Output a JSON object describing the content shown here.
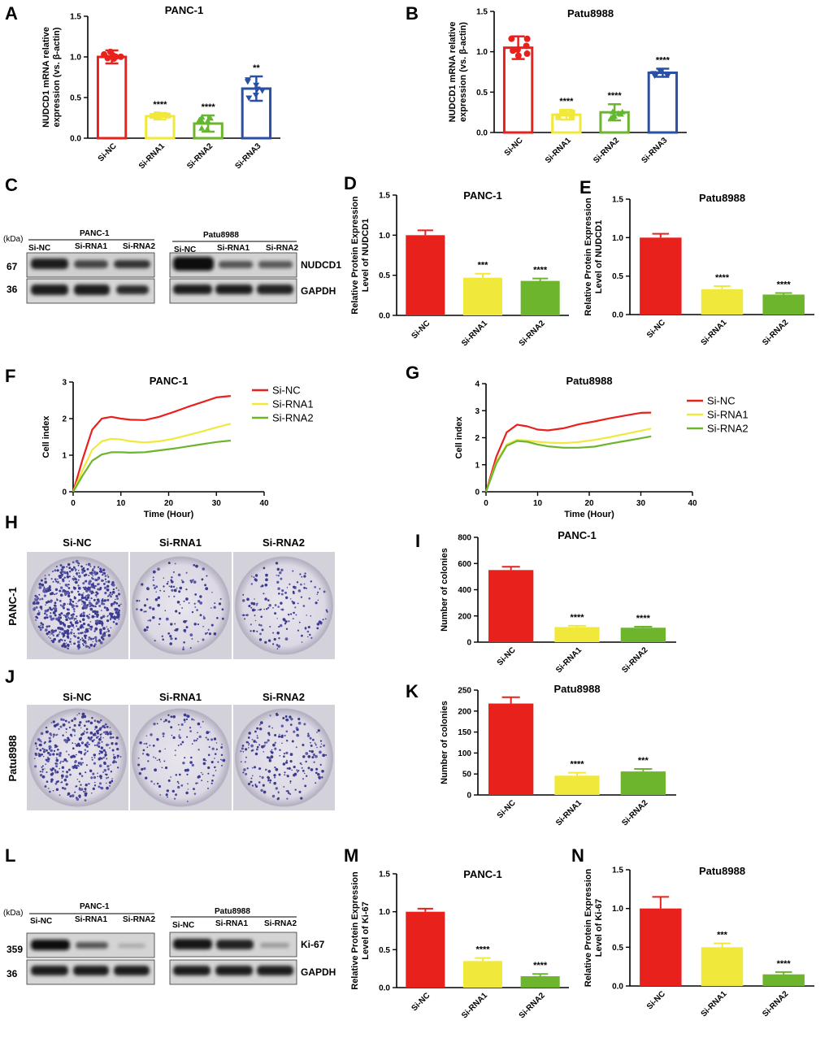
{
  "colors": {
    "siNC": "#e8211d",
    "siRNA1": "#f0e93c",
    "siRNA2": "#6cb52d",
    "siRNA3": "#2a4fa6",
    "rna2scatter": "#62b830"
  },
  "chart_data": [
    {
      "id": "A",
      "type": "bar",
      "title": "PANC-1",
      "ylabel": "NUDCD1 mRNA relative expression (vs. β-actin)",
      "categories": [
        "Si-NC",
        "Si-RNA1",
        "Si-RNA2",
        "Si-RNA3"
      ],
      "values": [
        1.0,
        0.27,
        0.18,
        0.61
      ],
      "errors": [
        0.08,
        0.04,
        0.1,
        0.15
      ],
      "sig": [
        "",
        "****",
        "****",
        "**"
      ],
      "ylim": [
        0,
        1.5
      ],
      "yticks": [
        "0.0",
        "0.5",
        "1.0",
        "1.5"
      ]
    },
    {
      "id": "B",
      "type": "bar",
      "title": "Patu8988",
      "ylabel": "NUDCD1 mRNA relative expression (vs. β-actin)",
      "categories": [
        "Si-NC",
        "Si-RNA1",
        "Si-RNA2",
        "Si-RNA3"
      ],
      "values": [
        1.05,
        0.22,
        0.25,
        0.74
      ],
      "errors": [
        0.14,
        0.06,
        0.1,
        0.05
      ],
      "sig": [
        "",
        "****",
        "****",
        "****"
      ],
      "ylim": [
        0,
        1.5
      ],
      "yticks": [
        "0.0",
        "0.5",
        "1.0",
        "1.5"
      ]
    },
    {
      "id": "D",
      "type": "bar",
      "title": "PANC-1",
      "ylabel": "Relative Protein Expression Level of NUDCD1",
      "categories": [
        "Si-NC",
        "Si-RNA1",
        "Si-RNA2"
      ],
      "values": [
        1.0,
        0.47,
        0.43
      ],
      "errors": [
        0.06,
        0.05,
        0.03
      ],
      "sig": [
        "",
        "***",
        "****"
      ],
      "ylim": [
        0,
        1.5
      ],
      "yticks": [
        "0.0",
        "0.5",
        "1.0",
        "1.5"
      ]
    },
    {
      "id": "E",
      "type": "bar",
      "title": "Patu8988",
      "ylabel": "Relative Protein Expression Level of NUDCD1",
      "categories": [
        "Si-NC",
        "Si-RNA1",
        "Si-RNA2"
      ],
      "values": [
        1.0,
        0.33,
        0.26
      ],
      "errors": [
        0.05,
        0.04,
        0.02
      ],
      "sig": [
        "",
        "****",
        "****"
      ],
      "ylim": [
        0,
        1.5
      ],
      "yticks": [
        "0.0",
        "0.5",
        "1.0",
        "1.5"
      ]
    },
    {
      "id": "F",
      "type": "line",
      "title": "PANC-1",
      "xlabel": "Time (Hour)",
      "ylabel": "Cell index",
      "xlim": [
        0,
        40
      ],
      "ylim": [
        0,
        3
      ],
      "xticks": [
        "0",
        "10",
        "20",
        "30",
        "40"
      ],
      "yticks": [
        "0",
        "1",
        "2",
        "3"
      ],
      "series": [
        {
          "name": "Si-NC",
          "x": [
            0,
            2,
            4,
            6,
            8,
            10,
            12,
            15,
            18,
            21,
            24,
            27,
            30,
            33
          ],
          "y": [
            0,
            0.9,
            1.7,
            2.0,
            2.05,
            2.0,
            1.97,
            1.96,
            2.05,
            2.18,
            2.32,
            2.45,
            2.58,
            2.62
          ]
        },
        {
          "name": "Si-RNA1",
          "x": [
            0,
            2,
            4,
            6,
            8,
            10,
            12,
            15,
            18,
            21,
            24,
            27,
            30,
            33
          ],
          "y": [
            0,
            0.6,
            1.15,
            1.38,
            1.45,
            1.43,
            1.38,
            1.35,
            1.38,
            1.45,
            1.55,
            1.65,
            1.76,
            1.86
          ]
        },
        {
          "name": "Si-RNA2",
          "x": [
            0,
            2,
            4,
            6,
            8,
            10,
            12,
            15,
            18,
            21,
            24,
            27,
            30,
            33
          ],
          "y": [
            0,
            0.45,
            0.85,
            1.02,
            1.08,
            1.08,
            1.07,
            1.08,
            1.13,
            1.18,
            1.24,
            1.3,
            1.36,
            1.4
          ]
        }
      ]
    },
    {
      "id": "G",
      "type": "line",
      "title": "Patu8988",
      "xlabel": "Time (Hour)",
      "ylabel": "Cell index",
      "xlim": [
        0,
        40
      ],
      "ylim": [
        0,
        4
      ],
      "xticks": [
        "0",
        "10",
        "20",
        "30",
        "40"
      ],
      "yticks": [
        "0",
        "1",
        "2",
        "3",
        "4"
      ],
      "series": [
        {
          "name": "Si-NC",
          "x": [
            0,
            2,
            4,
            6,
            8,
            10,
            12,
            15,
            18,
            21,
            24,
            27,
            30,
            32
          ],
          "y": [
            0,
            1.3,
            2.2,
            2.48,
            2.42,
            2.3,
            2.27,
            2.35,
            2.5,
            2.6,
            2.72,
            2.82,
            2.92,
            2.93
          ]
        },
        {
          "name": "Si-RNA1",
          "x": [
            0,
            2,
            4,
            6,
            8,
            10,
            12,
            15,
            18,
            21,
            24,
            27,
            30,
            32
          ],
          "y": [
            0,
            1.1,
            1.75,
            1.92,
            1.9,
            1.85,
            1.82,
            1.8,
            1.84,
            1.92,
            2.02,
            2.14,
            2.26,
            2.34
          ]
        },
        {
          "name": "Si-RNA2",
          "x": [
            0,
            2,
            4,
            6,
            8,
            10,
            12,
            15,
            18,
            21,
            24,
            27,
            30,
            32
          ],
          "y": [
            0,
            1.05,
            1.7,
            1.88,
            1.85,
            1.75,
            1.68,
            1.63,
            1.63,
            1.67,
            1.78,
            1.88,
            1.98,
            2.05
          ]
        }
      ]
    },
    {
      "id": "I",
      "type": "bar",
      "title": "PANC-1",
      "ylabel": "Number of colonies",
      "categories": [
        "Si-NC",
        "Si-RNA1",
        "Si-RNA2"
      ],
      "values": [
        550,
        115,
        110
      ],
      "errors": [
        25,
        10,
        8
      ],
      "sig": [
        "",
        "****",
        "****"
      ],
      "ylim": [
        0,
        800
      ],
      "yticks": [
        "0",
        "200",
        "400",
        "600",
        "800"
      ]
    },
    {
      "id": "K",
      "type": "bar",
      "title": "Patu8988",
      "ylabel": "Number of colonies",
      "categories": [
        "Si-NC",
        "Si-RNA1",
        "Si-RNA2"
      ],
      "values": [
        218,
        46,
        56
      ],
      "errors": [
        15,
        7,
        6
      ],
      "sig": [
        "",
        "****",
        "***"
      ],
      "ylim": [
        0,
        250
      ],
      "yticks": [
        "0",
        "50",
        "100",
        "150",
        "200",
        "250"
      ]
    },
    {
      "id": "M",
      "type": "bar",
      "title": "PANC-1",
      "ylabel": "Relative Protein Expression Level of Ki-67",
      "categories": [
        "Si-NC",
        "Si-RNA1",
        "Si-RNA2"
      ],
      "values": [
        1.0,
        0.35,
        0.15
      ],
      "errors": [
        0.04,
        0.04,
        0.03
      ],
      "sig": [
        "",
        "****",
        "****"
      ],
      "ylim": [
        0,
        1.5
      ],
      "yticks": [
        "0.0",
        "0.5",
        "1.0",
        "1.5"
      ]
    },
    {
      "id": "N",
      "type": "bar",
      "title": "Patu8988",
      "ylabel": "Relative Protein Expression Level of Ki-67",
      "categories": [
        "Si-NC",
        "Si-RNA1",
        "Si-RNA2"
      ],
      "values": [
        1.0,
        0.5,
        0.15
      ],
      "errors": [
        0.15,
        0.05,
        0.03
      ],
      "sig": [
        "",
        "***",
        "****"
      ],
      "ylim": [
        0,
        1.5
      ],
      "yticks": [
        "0.0",
        "0.5",
        "1.0",
        "1.5"
      ]
    }
  ],
  "panel_letters": {
    "A": "A",
    "B": "B",
    "C": "C",
    "D": "D",
    "E": "E",
    "F": "F",
    "G": "G",
    "H": "H",
    "I": "I",
    "J": "J",
    "K": "K",
    "L": "L",
    "M": "M",
    "N": "N"
  },
  "western_c": {
    "kda": "(kDa)",
    "left_title": "PANC-1",
    "right_title": "Patu8988",
    "lanes": [
      "Si-NC",
      "Si-RNA1",
      "Si-RNA2"
    ],
    "mw": [
      "67",
      "36"
    ],
    "bands": [
      "NUDCD1",
      "GAPDH"
    ]
  },
  "western_l": {
    "kda": "(kDa)",
    "left_title": "PANC-1",
    "right_title": "Patu8988",
    "lanes": [
      "Si-NC",
      "Si-RNA1",
      "Si-RNA2"
    ],
    "mw": [
      "359",
      "36"
    ],
    "bands": [
      "Ki-67",
      "GAPDH"
    ]
  },
  "colony_h": {
    "row_label": "PANC-1",
    "cols": [
      "Si-NC",
      "Si-RNA1",
      "Si-RNA2"
    ],
    "density": [
      0.95,
      0.2,
      0.22
    ]
  },
  "colony_j": {
    "row_label": "Patu8988",
    "cols": [
      "Si-NC",
      "Si-RNA1",
      "Si-RNA2"
    ],
    "density": [
      0.55,
      0.22,
      0.3
    ]
  }
}
